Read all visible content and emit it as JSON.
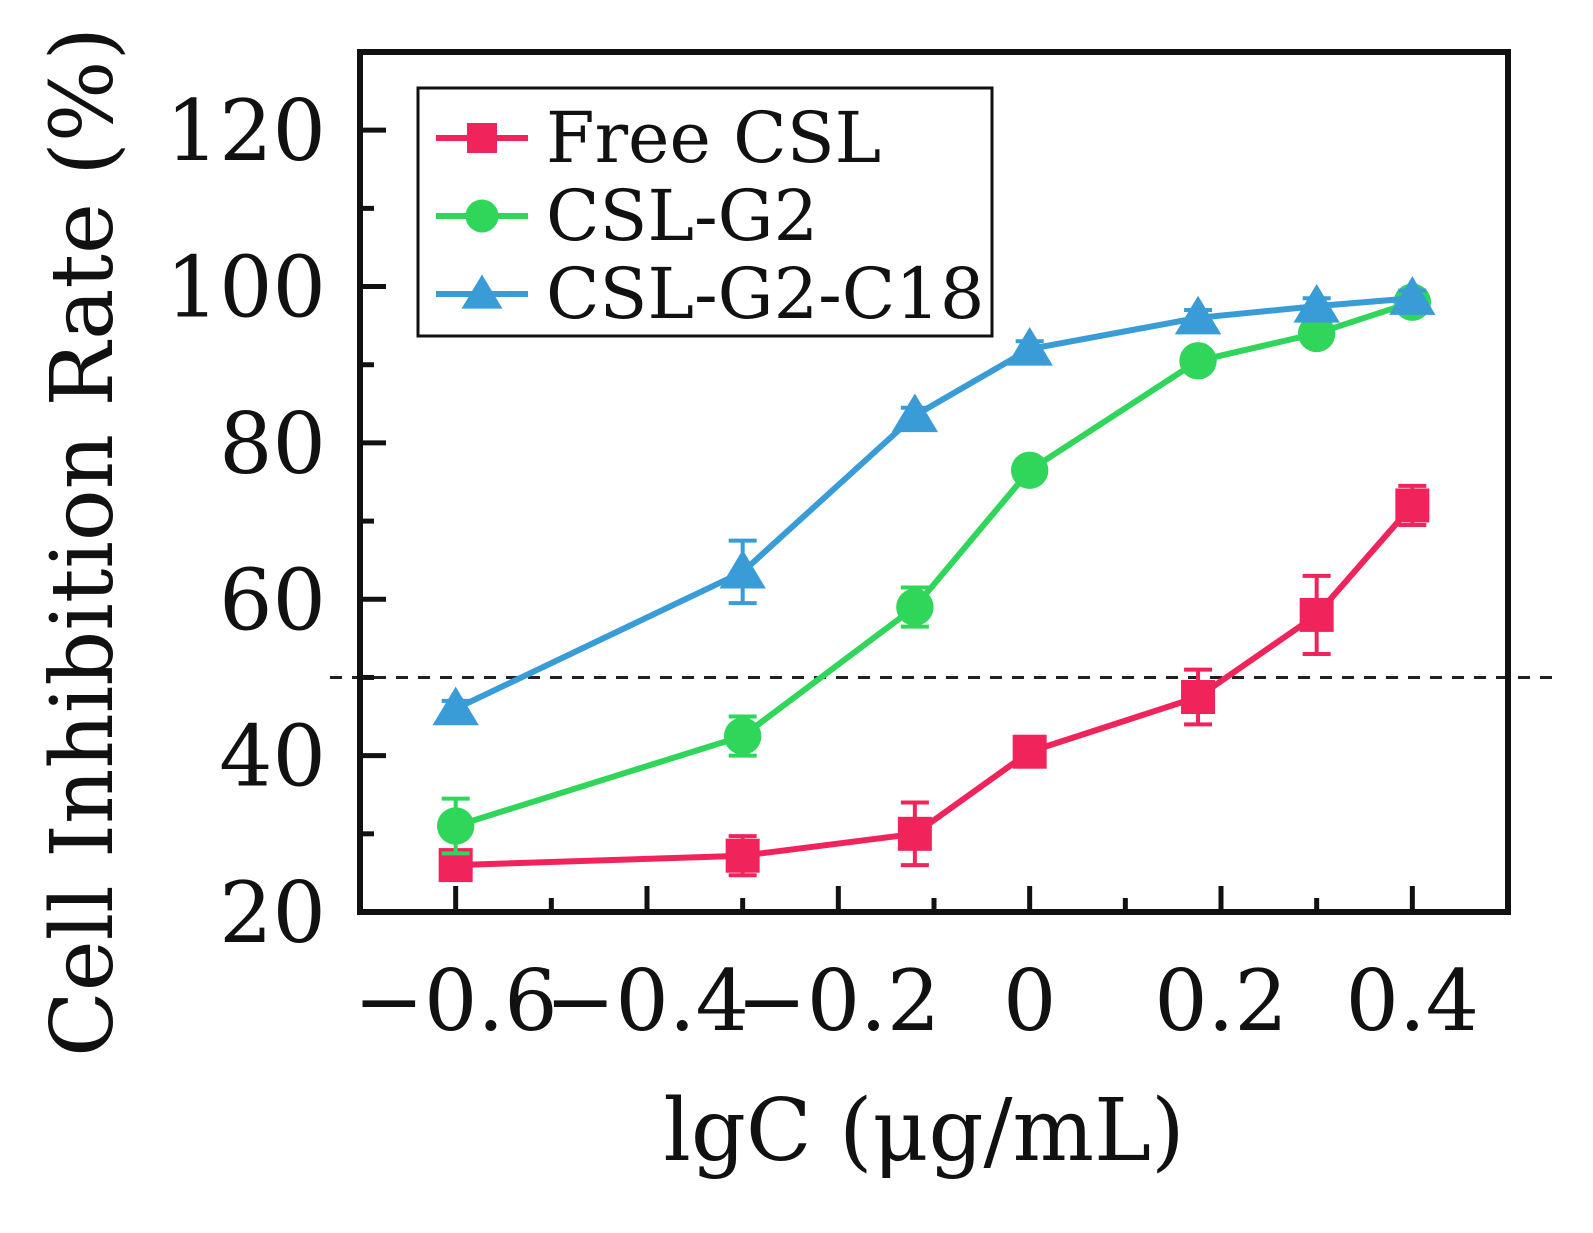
{
  "chart_data": {
    "type": "line",
    "title": "",
    "xlabel": "lgC (μg/mL)",
    "ylabel": "Cell Inhibition Rate (%)",
    "xlim": [
      -0.7,
      0.5
    ],
    "ylim": [
      20,
      130
    ],
    "x_ticks": [
      -0.6,
      -0.4,
      -0.2,
      0,
      0.2,
      0.4
    ],
    "x_tick_labels": [
      "−0.6",
      "−0.4",
      "−0.2",
      "0",
      "0.2",
      "0.4"
    ],
    "y_ticks": [
      20,
      40,
      60,
      80,
      100,
      120
    ],
    "y_tick_labels": [
      "20",
      "40",
      "60",
      "80",
      "100",
      "120"
    ],
    "reference_line": {
      "y": 50,
      "style": "dashed"
    },
    "legend": {
      "position": "top-left"
    },
    "grid": false,
    "series": [
      {
        "name": "Free CSL",
        "color": "#f0245a",
        "marker": "square",
        "x": [
          -0.6,
          -0.3,
          -0.12,
          0,
          0.176,
          0.3,
          0.4
        ],
        "y": [
          26.0,
          27.2,
          30.0,
          40.5,
          47.5,
          58.0,
          72.0
        ],
        "err": [
          1.5,
          2.5,
          4.0,
          1.0,
          3.5,
          5.0,
          2.5
        ]
      },
      {
        "name": "CSL-G2",
        "color": "#2fd65a",
        "marker": "circle",
        "x": [
          -0.6,
          -0.3,
          -0.12,
          0,
          0.176,
          0.3,
          0.4
        ],
        "y": [
          31.0,
          42.5,
          59.0,
          76.5,
          90.5,
          94.0,
          98.0
        ],
        "err": [
          3.5,
          2.5,
          2.5,
          1.0,
          1.0,
          1.0,
          1.0
        ]
      },
      {
        "name": "CSL-G2-C18",
        "color": "#3a9cd6",
        "marker": "triangle",
        "x": [
          -0.6,
          -0.3,
          -0.12,
          0,
          0.176,
          0.3,
          0.4
        ],
        "y": [
          46.0,
          63.5,
          83.5,
          92.0,
          96.0,
          97.5,
          98.5
        ],
        "err": [
          1.0,
          4.0,
          1.0,
          1.0,
          1.0,
          1.0,
          1.0
        ]
      }
    ]
  }
}
